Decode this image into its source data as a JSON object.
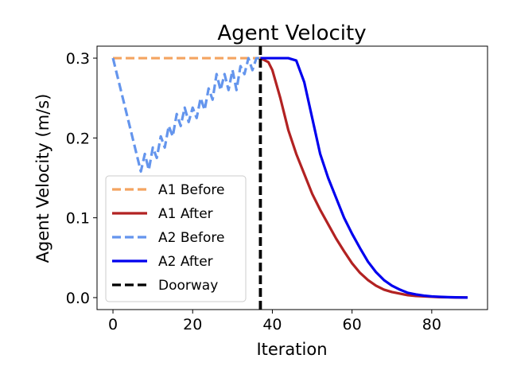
{
  "chart_data": {
    "type": "line",
    "title": "Agent Velocity",
    "xlabel": "Iteration",
    "ylabel": "Agent Velocity (m/s)",
    "xlim": [
      -4,
      94
    ],
    "ylim": [
      -0.015,
      0.315
    ],
    "xticks": [
      0,
      20,
      40,
      60,
      80
    ],
    "yticks": [
      0.0,
      0.1,
      0.2,
      0.3
    ],
    "xtick_labels": [
      "0",
      "20",
      "40",
      "60",
      "80"
    ],
    "ytick_labels": [
      "0.0",
      "0.1",
      "0.2",
      "0.3"
    ],
    "grid": false,
    "legend_position": "lower-left",
    "doorway_x": 37,
    "series": [
      {
        "name": "A1 Before",
        "color": "#F4A460",
        "style": "dashed",
        "x": [
          0,
          37
        ],
        "y": [
          0.3,
          0.3
        ]
      },
      {
        "name": "A1 After",
        "color": "#B22222",
        "style": "solid",
        "x": [
          37,
          39,
          40,
          42,
          44,
          46,
          48,
          50,
          52,
          54,
          56,
          58,
          60,
          62,
          64,
          66,
          68,
          70,
          72,
          74,
          76,
          78,
          80,
          82,
          84,
          86,
          89
        ],
        "y": [
          0.3,
          0.295,
          0.285,
          0.25,
          0.21,
          0.18,
          0.155,
          0.13,
          0.11,
          0.092,
          0.074,
          0.058,
          0.043,
          0.031,
          0.022,
          0.015,
          0.01,
          0.007,
          0.005,
          0.003,
          0.002,
          0.0015,
          0.001,
          0.0006,
          0.0004,
          0.0002,
          0.0001
        ]
      },
      {
        "name": "A2 Before",
        "color": "#6495ED",
        "style": "dashed",
        "x": [
          0,
          7,
          8,
          9,
          10,
          11,
          12,
          13,
          14,
          15,
          16,
          17,
          18,
          19,
          20,
          21,
          22,
          23,
          24,
          25,
          26,
          27,
          28,
          29,
          30,
          31,
          32,
          33,
          34,
          35,
          36,
          37
        ],
        "y": [
          0.3,
          0.158,
          0.18,
          0.16,
          0.188,
          0.175,
          0.202,
          0.188,
          0.215,
          0.202,
          0.23,
          0.215,
          0.238,
          0.22,
          0.238,
          0.225,
          0.25,
          0.235,
          0.262,
          0.248,
          0.28,
          0.26,
          0.28,
          0.26,
          0.285,
          0.26,
          0.29,
          0.28,
          0.3,
          0.285,
          0.3,
          0.3
        ]
      },
      {
        "name": "A2 After",
        "color": "#0000EE",
        "style": "solid",
        "x": [
          37,
          44,
          46,
          48,
          50,
          52,
          54,
          56,
          58,
          60,
          62,
          64,
          66,
          68,
          70,
          72,
          74,
          76,
          78,
          80,
          82,
          84,
          86,
          89
        ],
        "y": [
          0.3,
          0.3,
          0.297,
          0.27,
          0.225,
          0.18,
          0.15,
          0.125,
          0.1,
          0.08,
          0.062,
          0.045,
          0.032,
          0.022,
          0.015,
          0.01,
          0.006,
          0.004,
          0.0025,
          0.0015,
          0.001,
          0.0006,
          0.0003,
          0.0001
        ]
      }
    ],
    "doorway": {
      "name": "Doorway",
      "color": "#000000",
      "style": "dashed"
    }
  }
}
